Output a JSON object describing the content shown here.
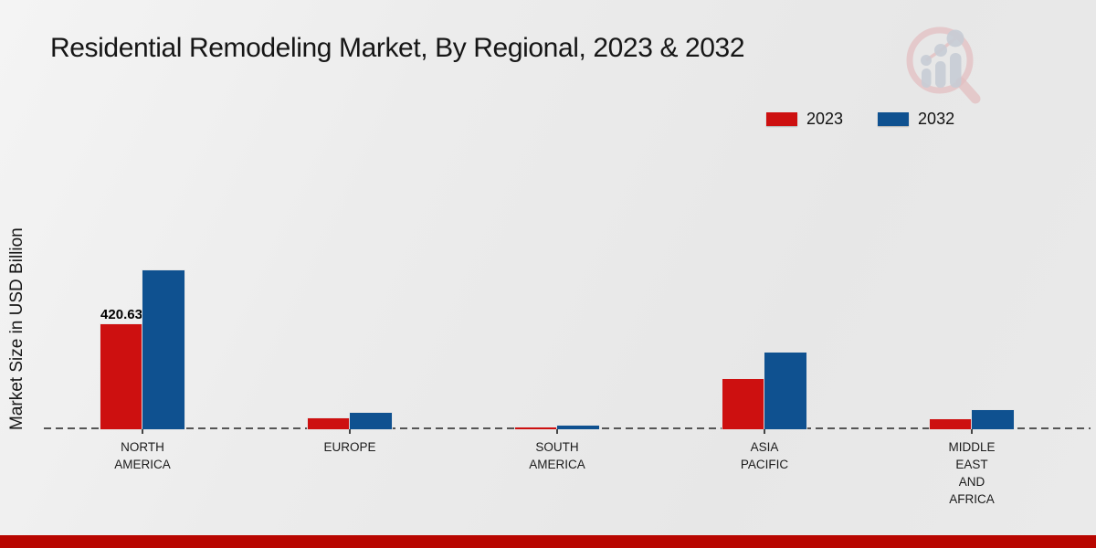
{
  "page": {
    "title": "Residential Remodeling Market, By Regional, 2023 & 2032"
  },
  "ylabel": "Market Size in USD Billion",
  "legend": [
    {
      "label": "2023",
      "color": "#cd1010"
    },
    {
      "label": "2032",
      "color": "#0f5190"
    }
  ],
  "chart_data": {
    "type": "bar",
    "title": "Residential Remodeling Market, By Regional, 2023 & 2032",
    "ylabel": "Market Size in USD Billion",
    "categories": [
      "NORTH AMERICA",
      "EUROPE",
      "SOUTH AMERICA",
      "ASIA PACIFIC",
      "MIDDLE EAST AND AFRICA"
    ],
    "series": [
      {
        "name": "2023",
        "color": "#cd1010",
        "values": [
          420.63,
          44,
          9,
          201,
          40
        ]
      },
      {
        "name": "2032",
        "color": "#0f5190",
        "values": [
          636,
          66,
          15,
          307,
          77
        ]
      }
    ],
    "data_labels": [
      {
        "series": "2023",
        "category": "NORTH AMERICA",
        "text": "420.63"
      }
    ],
    "ylim": [
      0,
      700
    ],
    "grid": "off",
    "baseline": "dashed zero line",
    "legend_position": "top-right"
  },
  "footer": {
    "band_color": "#b80600"
  },
  "watermark": {
    "name": "magnifier-bar-chart-logo"
  }
}
